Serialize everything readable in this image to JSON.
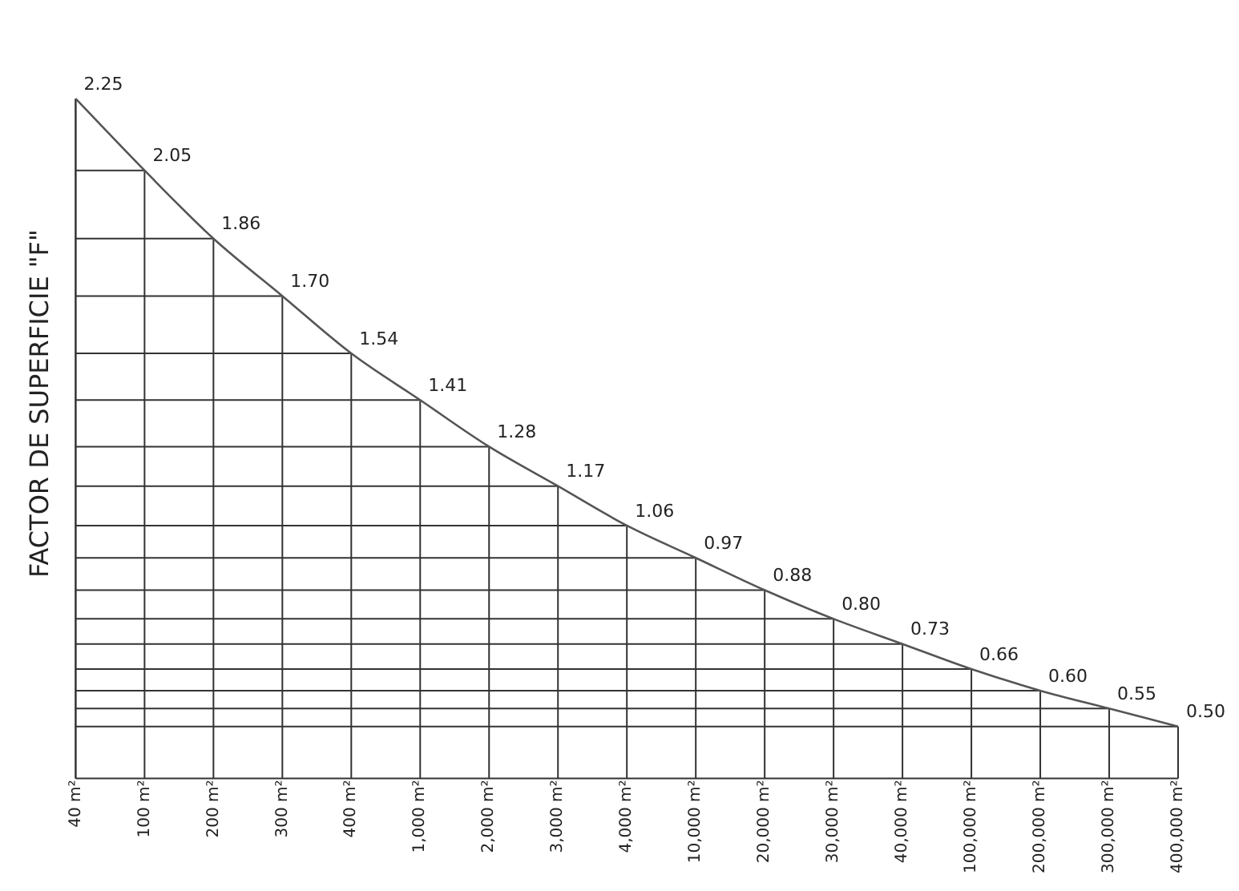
{
  "chart_data": {
    "type": "line",
    "ylabel": "FACTOR DE SUPERFICIE \"F\"",
    "categories": [
      "40 m²",
      "100 m²",
      "200 m²",
      "300 m²",
      "400 m²",
      "1,000 m²",
      "2,000 m²",
      "3,000 m²",
      "4,000 m²",
      "10,000 m²",
      "20,000 m²",
      "30,000 m²",
      "40,000 m²",
      "100,000 m²",
      "200,000 m²",
      "300,000 m²",
      "400,000 m²"
    ],
    "series": [
      {
        "color": "#555555",
        "values": [
          2.25,
          2.05,
          1.86,
          1.7,
          1.54,
          1.41,
          1.28,
          1.17,
          1.06,
          0.97,
          0.88,
          0.8,
          0.73,
          0.66,
          0.6,
          0.55,
          0.5
        ],
        "value_labels": [
          "2.25",
          "2.05",
          "1.86",
          "1.70",
          "1.54",
          "1.41",
          "1.28",
          "1.17",
          "1.06",
          "0.97",
          "0.88",
          "0.80",
          "0.73",
          "0.66",
          "0.60",
          "0.55",
          "0.50"
        ]
      }
    ],
    "tick_labels": "x",
    "grid": true,
    "marker": "none",
    "line_style": "solid",
    "legend": false
  }
}
